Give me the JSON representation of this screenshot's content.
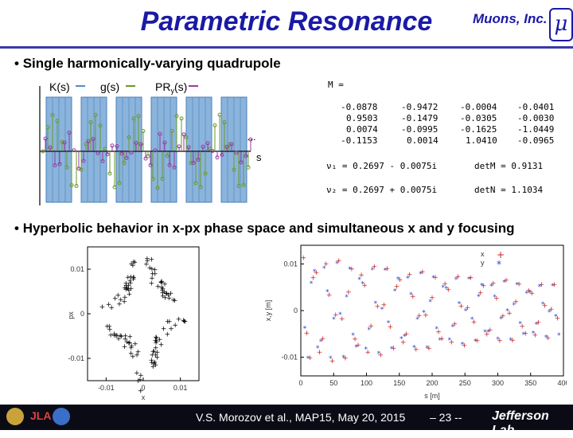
{
  "header": {
    "title": "Parametric Resonance",
    "brand": "Muons, Inc.",
    "mu_symbol": "μ"
  },
  "bullets": [
    "Single harmonically-varying quadrupole",
    "Hyperbolic behavior in x-px phase space and simultaneous x and y focusing"
  ],
  "bullet_char": "•",
  "diagram": {
    "legend": [
      "K(s)",
      "g(s)",
      "PR",
      "y",
      "(s)"
    ],
    "ellipsis": "…",
    "s_label": "s"
  },
  "matrix": {
    "label": "M =",
    "rows": [
      [
        "-0.0878",
        "-0.9472",
        "-0.0004",
        "-0.0401"
      ],
      [
        "0.9503",
        "-0.1479",
        "-0.0305",
        "-0.0030"
      ],
      [
        "0.0074",
        "-0.0995",
        "-0.1625",
        "-1.0449"
      ],
      [
        "-0.1153",
        "0.0014",
        "1.0410",
        "-0.0965"
      ]
    ],
    "nu1": "ν₁ = 0.2697 - 0.0075i",
    "nu2": "ν₂ = 0.2697 + 0.0075i",
    "detM": "detM = 0.9131",
    "detN": "detN = 1.1034"
  },
  "chart_data": [
    {
      "type": "scatter",
      "xlabel": "x",
      "ylabel": "px",
      "x_ticks": [
        "-0.01",
        "0",
        "0.01"
      ],
      "y_ticks": [
        "0.01",
        "0",
        "-0.01"
      ],
      "xlim": [
        -0.015,
        0.015
      ],
      "ylim": [
        -0.015,
        0.015
      ],
      "marker": "+",
      "color": "#000000"
    },
    {
      "type": "scatter",
      "xlabel": "s [m]",
      "ylabel": "x,y [m]",
      "x_ticks": [
        "0",
        "50",
        "100",
        "150",
        "200",
        "250",
        "300",
        "350",
        "400"
      ],
      "y_ticks": [
        "0.01",
        "0",
        "-0.01"
      ],
      "xlim": [
        0,
        400
      ],
      "ylim": [
        -0.014,
        0.014
      ],
      "legend": [
        "x",
        "y"
      ],
      "legend_position": "top-right",
      "series": [
        {
          "name": "x",
          "marker": "+",
          "color": "#cc2222"
        },
        {
          "name": "y",
          "marker": "*",
          "color": "#2244cc"
        }
      ]
    }
  ],
  "footer": {
    "citation": "V.S. Morozov et al., MAP15, May 20, 2015",
    "page": "– 23 --",
    "lab": "Jefferson Lab",
    "logo_text": "JLA"
  }
}
